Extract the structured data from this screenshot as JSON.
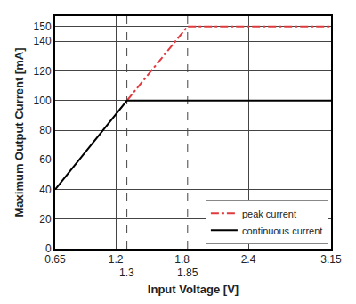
{
  "chart_data": {
    "type": "line",
    "x_label": "Input Voltage [V]",
    "y_label": "Maximum Output Current [mA]",
    "series": [
      {
        "name": "peak current",
        "color": "#e03a3e",
        "line_style": "dashdot",
        "x": [
          1.3,
          1.85,
          3.15
        ],
        "values": [
          100,
          150,
          150
        ]
      },
      {
        "name": "continuous current",
        "color": "#000000",
        "line_style": "solid",
        "x": [
          0.65,
          1.3,
          3.15
        ],
        "values": [
          40,
          100,
          100
        ]
      }
    ],
    "xlim": [
      0.65,
      3.15
    ],
    "xticks": [
      0.65,
      1.2,
      1.3,
      1.8,
      1.85,
      2.4,
      3.15
    ],
    "ylim": [
      0,
      157
    ],
    "yticks": [
      0,
      20,
      40,
      60,
      80,
      100,
      120,
      140,
      150
    ],
    "grid": true,
    "legend": "bottom right"
  }
}
